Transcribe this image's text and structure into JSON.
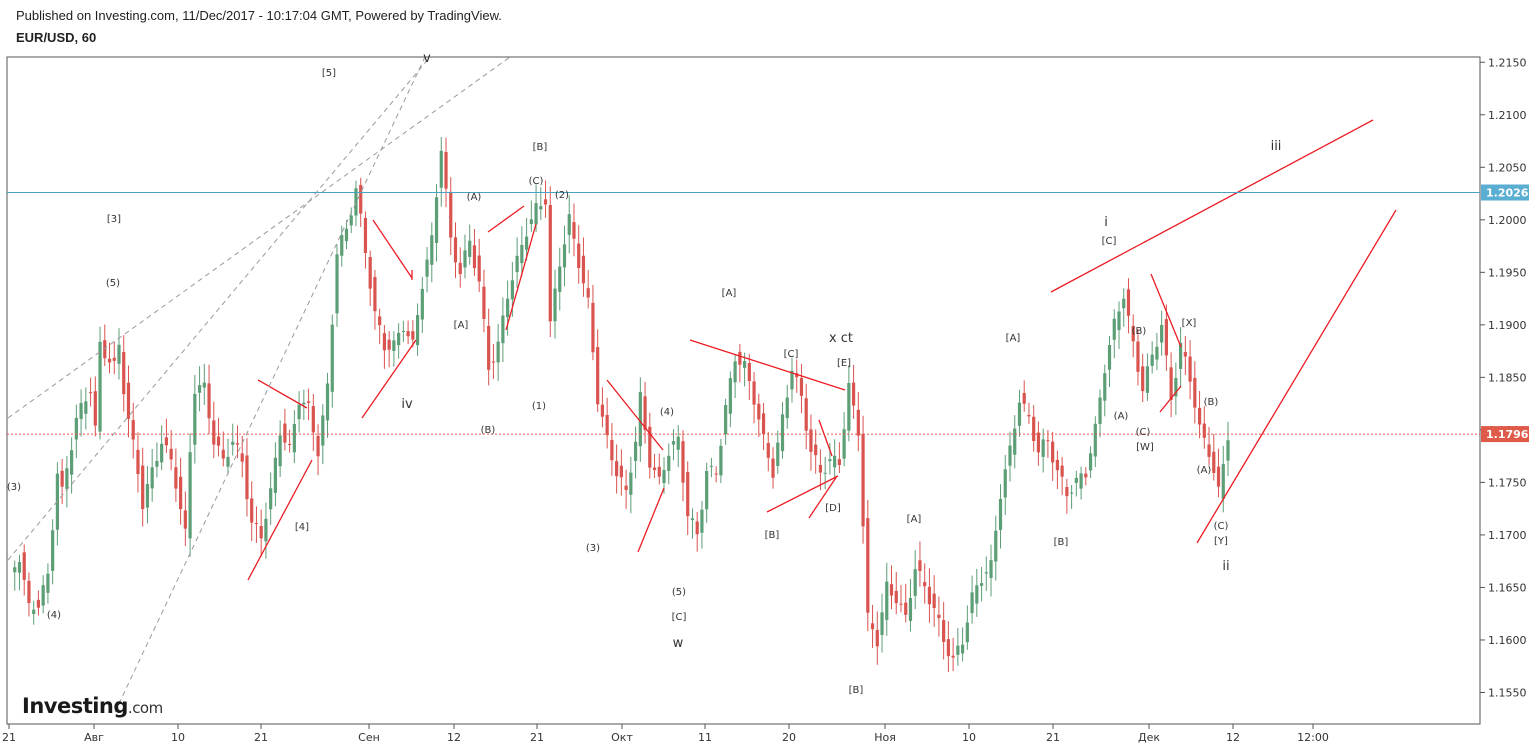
{
  "header": {
    "published": "Published on Investing.com, 11/Dec/2017 - 10:17:04 GMT, Powered by TradingView.",
    "symbol": "EUR/USD, 60"
  },
  "logo": {
    "name": "Investing",
    "suffix": ".com"
  },
  "colors": {
    "up": "#5c9e76",
    "down": "#d9534f",
    "lines": "#ec1c24",
    "horizontal": "#4aa3c2",
    "price_tag": "#e05a4a",
    "level_tag": "#5aaed1"
  },
  "chart_data": {
    "type": "candlestick",
    "title": "EUR/USD, 60",
    "y_axis": {
      "range": [
        1.152,
        1.2155
      ],
      "ticks": [
        "1.2150",
        "1.2100",
        "1.2050",
        "1.2000",
        "1.1950",
        "1.1900",
        "1.1850",
        "1.1800",
        "1.1750",
        "1.1700",
        "1.1650",
        "1.1600",
        "1.1550"
      ]
    },
    "x_axis": {
      "tick_labels": [
        "21",
        "Авг",
        "10",
        "21",
        "Сен",
        "12",
        "21",
        "Окт",
        "11",
        "20",
        "Ноя",
        "10",
        "21",
        "Дек",
        "12",
        "12:00"
      ]
    },
    "price_tags": [
      {
        "label": "1.2026",
        "value": 1.2026,
        "kind": "horizontal_level"
      },
      {
        "label": "1.1796",
        "value": 1.1796,
        "kind": "last_price"
      }
    ],
    "price_path": [
      [
        0,
        1.166
      ],
      [
        2,
        1.168
      ],
      [
        4,
        1.163
      ],
      [
        6,
        1.1635
      ],
      [
        8,
        1.166
      ],
      [
        10,
        1.176
      ],
      [
        11,
        1.174
      ],
      [
        14,
        1.181
      ],
      [
        17,
        1.184
      ],
      [
        18,
        1.18
      ],
      [
        19,
        1.188
      ],
      [
        22,
        1.186
      ],
      [
        23,
        1.188
      ],
      [
        24,
        1.184
      ],
      [
        25,
        1.181
      ],
      [
        27,
        1.176
      ],
      [
        28,
        1.173
      ],
      [
        30,
        1.176
      ],
      [
        32,
        1.179
      ],
      [
        34,
        1.177
      ],
      [
        35,
        1.175
      ],
      [
        37,
        1.17
      ],
      [
        38,
        1.178
      ],
      [
        39,
        1.184
      ],
      [
        41,
        1.184
      ],
      [
        43,
        1.179
      ],
      [
        45,
        1.177
      ],
      [
        47,
        1.179
      ],
      [
        49,
        1.177
      ],
      [
        51,
        1.171
      ],
      [
        53,
        1.17
      ],
      [
        55,
        1.174
      ],
      [
        57,
        1.18
      ],
      [
        59,
        1.178
      ],
      [
        61,
        1.183
      ],
      [
        63,
        1.182
      ],
      [
        65,
        1.178
      ],
      [
        67,
        1.184
      ],
      [
        69,
        1.197
      ],
      [
        71,
        1.199
      ],
      [
        73,
        1.203
      ],
      [
        75,
        1.197
      ],
      [
        77,
        1.191
      ],
      [
        79,
        1.188
      ],
      [
        81,
        1.188
      ],
      [
        83,
        1.19
      ],
      [
        85,
        1.188
      ],
      [
        87,
        1.194
      ],
      [
        89,
        1.198
      ],
      [
        91,
        1.207
      ],
      [
        93,
        1.198
      ],
      [
        95,
        1.195
      ],
      [
        97,
        1.198
      ],
      [
        99,
        1.194
      ],
      [
        101,
        1.186
      ],
      [
        103,
        1.188
      ],
      [
        105,
        1.193
      ],
      [
        107,
        1.196
      ],
      [
        109,
        1.199
      ],
      [
        111,
        1.201
      ],
      [
        113,
        1.202
      ],
      [
        114,
        1.19
      ],
      [
        116,
        1.196
      ],
      [
        118,
        1.2
      ],
      [
        120,
        1.196
      ],
      [
        122,
        1.192
      ],
      [
        124,
        1.183
      ],
      [
        126,
        1.179
      ],
      [
        128,
        1.176
      ],
      [
        130,
        1.174
      ],
      [
        132,
        1.179
      ],
      [
        133,
        1.183
      ],
      [
        135,
        1.177
      ],
      [
        137,
        1.175
      ],
      [
        139,
        1.178
      ],
      [
        141,
        1.179
      ],
      [
        143,
        1.172
      ],
      [
        145,
        1.17
      ],
      [
        147,
        1.176
      ],
      [
        149,
        1.176
      ],
      [
        151,
        1.182
      ],
      [
        153,
        1.187
      ],
      [
        155,
        1.186
      ],
      [
        157,
        1.183
      ],
      [
        159,
        1.179
      ],
      [
        161,
        1.176
      ],
      [
        163,
        1.181
      ],
      [
        165,
        1.186
      ],
      [
        167,
        1.183
      ],
      [
        169,
        1.178
      ],
      [
        171,
        1.176
      ],
      [
        173,
        1.177
      ],
      [
        175,
        1.177
      ],
      [
        177,
        1.184
      ],
      [
        179,
        1.18
      ],
      [
        181,
        1.162
      ],
      [
        183,
        1.16
      ],
      [
        185,
        1.165
      ],
      [
        187,
        1.164
      ],
      [
        189,
        1.162
      ],
      [
        191,
        1.167
      ],
      [
        193,
        1.165
      ],
      [
        195,
        1.163
      ],
      [
        197,
        1.16
      ],
      [
        199,
        1.158
      ],
      [
        201,
        1.16
      ],
      [
        203,
        1.164
      ],
      [
        205,
        1.166
      ],
      [
        207,
        1.167
      ],
      [
        209,
        1.174
      ],
      [
        211,
        1.178
      ],
      [
        213,
        1.183
      ],
      [
        215,
        1.181
      ],
      [
        217,
        1.178
      ],
      [
        219,
        1.179
      ],
      [
        221,
        1.176
      ],
      [
        223,
        1.174
      ],
      [
        225,
        1.175
      ],
      [
        227,
        1.176
      ],
      [
        229,
        1.18
      ],
      [
        231,
        1.186
      ],
      [
        233,
        1.19
      ],
      [
        235,
        1.193
      ],
      [
        237,
        1.188
      ],
      [
        239,
        1.184
      ],
      [
        241,
        1.187
      ],
      [
        243,
        1.19
      ],
      [
        245,
        1.183
      ],
      [
        247,
        1.188
      ],
      [
        249,
        1.185
      ],
      [
        251,
        1.18
      ],
      [
        253,
        1.178
      ],
      [
        255,
        1.174
      ],
      [
        257,
        1.1796
      ]
    ],
    "annotations": [
      "[3]",
      "(5)",
      "(3)",
      "(4)",
      "[5]",
      "v",
      "iv",
      "[4]",
      "(A)",
      "[A]",
      "(B)",
      "(C)",
      "[B]",
      "(2)",
      "(1)",
      "(3)",
      "(4)",
      "(5)",
      "[C]",
      "w",
      "[A]",
      "[C]",
      "[E]",
      "x ct",
      "[B]",
      "[D]",
      "[A]",
      "[B]",
      "[A]",
      "[B]",
      "i",
      "[C]",
      "(B)",
      "(A)",
      "(C)",
      "[W]",
      "[X]",
      "(B)",
      "(A)",
      "(C)",
      "[Y]",
      "ii",
      "iii"
    ]
  }
}
